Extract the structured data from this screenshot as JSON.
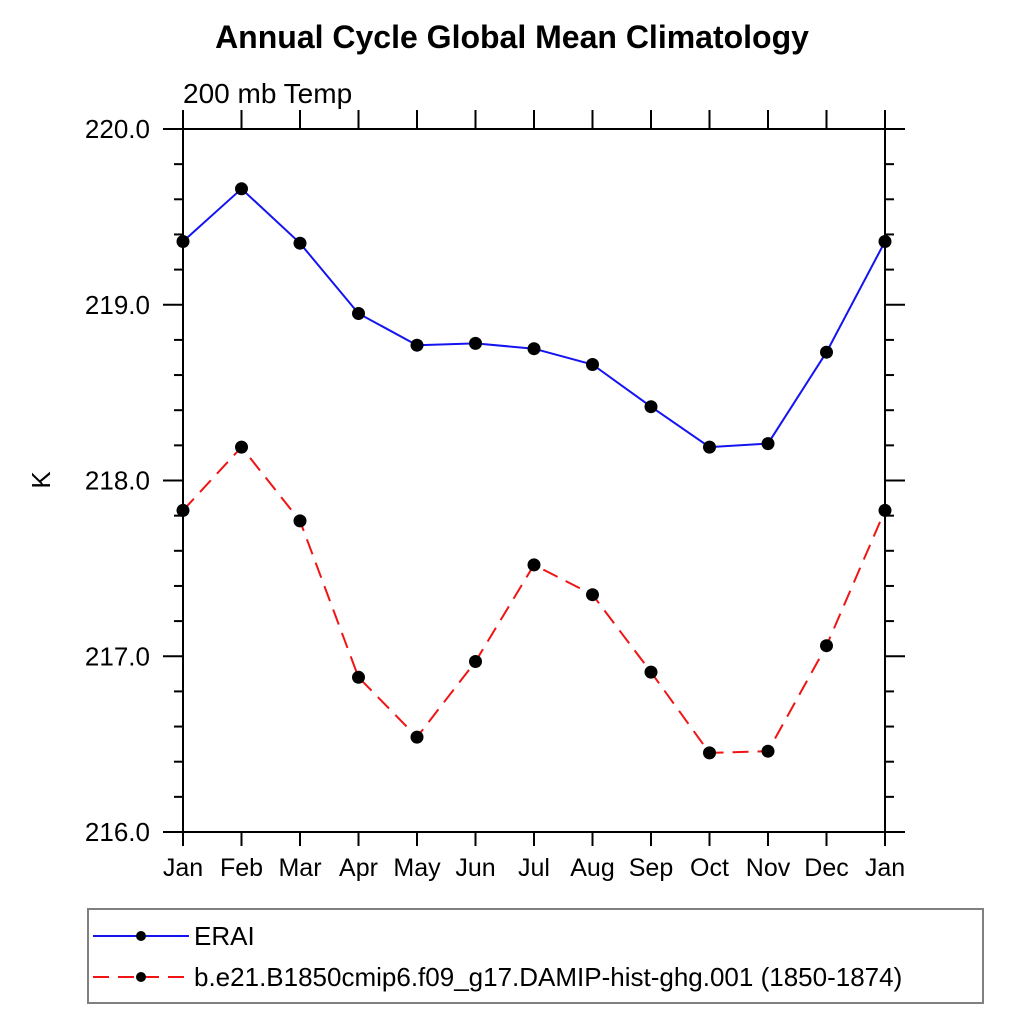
{
  "page": {
    "background": "#ffffff"
  },
  "chart_data": {
    "type": "line",
    "title": "Annual Cycle Global Mean Climatology",
    "subtitle": "200 mb Temp",
    "ylabel": "K",
    "xlabel": "",
    "categories": [
      "Jan",
      "Feb",
      "Mar",
      "Apr",
      "May",
      "Jun",
      "Jul",
      "Aug",
      "Sep",
      "Oct",
      "Nov",
      "Dec",
      "Jan"
    ],
    "ylim": [
      216.0,
      220.0
    ],
    "ytick_major_values": [
      216.0,
      217.0,
      218.0,
      219.0,
      220.0
    ],
    "ytick_major_labels": [
      "216.0",
      "217.0",
      "218.0",
      "219.0",
      "220.0"
    ],
    "ytick_minor_step": 0.2,
    "grid": false,
    "axis_color": "#000000",
    "marker_color": "#000000",
    "series": [
      {
        "name": "ERAI",
        "color": "#1414f0",
        "line_style": "solid",
        "marker": "circle",
        "values": [
          219.36,
          219.66,
          219.35,
          218.95,
          218.77,
          218.78,
          218.75,
          218.66,
          218.42,
          218.19,
          218.21,
          218.73,
          219.36
        ]
      },
      {
        "name": "b.e21.B1850cmip6.f09_g17.DAMIP-hist-ghg.001 (1850-1874)",
        "color": "#f01414",
        "line_style": "dashed",
        "marker": "circle",
        "values": [
          217.83,
          218.19,
          217.77,
          216.88,
          216.54,
          216.97,
          217.52,
          217.35,
          216.91,
          216.45,
          216.46,
          217.06,
          217.83
        ]
      }
    ],
    "legend": {
      "position": "bottom-left",
      "border_color": "#808080",
      "background": "#ffffff"
    }
  }
}
